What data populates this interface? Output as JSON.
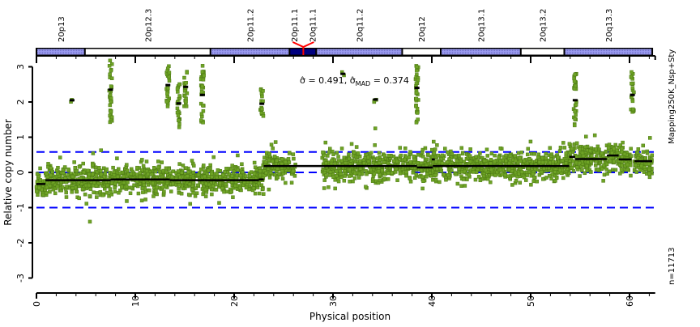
{
  "chart_data": {
    "type": "scatter",
    "xlabel": "Physical position",
    "ylabel": "Relative copy number",
    "xlim": [
      0,
      62.6
    ],
    "ylim": [
      -3,
      3.2
    ],
    "xticks": [
      0,
      10,
      20,
      30,
      40,
      50,
      60
    ],
    "yticks": [
      -3,
      -2,
      -1,
      0,
      1,
      2,
      3
    ],
    "annotation": {
      "sigma": "σ̂ = 0.491",
      "sep": ", ",
      "sigma_mad_prefix": "σ̂",
      "sigma_mad_sub": "MAD",
      "sigma_mad_value": " = 0.374"
    },
    "side_label": "Mapping250K_Nsp+Sty",
    "n_label": "n=11713",
    "n_points": 11713,
    "thresholds": [
      0.58,
      0,
      -1
    ],
    "colors": {
      "points": "#6ea325",
      "points_edge": "#4d7a14",
      "segments": "#000000",
      "thresholds": "#0000ff",
      "gpos": "#8c8ce6",
      "acen": "#000080",
      "centromere": "#ff0000"
    },
    "cytobands": [
      {
        "name": "20p13",
        "start": 0,
        "end": 4.9,
        "stain": "gpos"
      },
      {
        "name": "20p12.3",
        "start": 4.9,
        "end": 17.6,
        "stain": "gneg"
      },
      {
        "name": "20p11.2",
        "start": 17.6,
        "end": 25.6,
        "stain": "gpos"
      },
      {
        "name": "20p11.1",
        "start": 25.6,
        "end": 27.0,
        "stain": "acen"
      },
      {
        "name": "20q11.1",
        "start": 27.0,
        "end": 28.3,
        "stain": "acen"
      },
      {
        "name": "20q11.2",
        "start": 28.3,
        "end": 37.0,
        "stain": "gpos"
      },
      {
        "name": "20q12",
        "start": 37.0,
        "end": 40.9,
        "stain": "gneg"
      },
      {
        "name": "20q13.1",
        "start": 40.9,
        "end": 49.0,
        "stain": "gpos"
      },
      {
        "name": "20q13.2",
        "start": 49.0,
        "end": 53.4,
        "stain": "gneg"
      },
      {
        "name": "20q13.3",
        "start": 53.4,
        "end": 62.3,
        "stain": "gpos"
      }
    ],
    "centromere": 27.0,
    "segments": [
      {
        "start": 0,
        "end": 0.9,
        "mean": -0.33
      },
      {
        "start": 0.9,
        "end": 7.5,
        "mean": -0.22
      },
      {
        "start": 7.5,
        "end": 13.5,
        "mean": -0.2
      },
      {
        "start": 13.5,
        "end": 17.0,
        "mean": -0.22
      },
      {
        "start": 17.0,
        "end": 22.5,
        "mean": -0.22
      },
      {
        "start": 22.5,
        "end": 23.0,
        "mean": -0.2
      },
      {
        "start": 23.0,
        "end": 38.5,
        "mean": 0.18
      },
      {
        "start": 38.5,
        "end": 40.1,
        "mean": 0.14
      },
      {
        "start": 40.0,
        "end": 40.3,
        "mean": 0.37
      },
      {
        "start": 40.1,
        "end": 53.9,
        "mean": 0.18
      },
      {
        "start": 53.9,
        "end": 54.5,
        "mean": 0.44
      },
      {
        "start": 54.5,
        "end": 57.7,
        "mean": 0.38
      },
      {
        "start": 57.7,
        "end": 58.9,
        "mean": 0.48
      },
      {
        "start": 58.9,
        "end": 60.2,
        "mean": 0.37
      },
      {
        "start": 60.5,
        "end": 62.3,
        "mean": 0.32
      }
    ],
    "outlier_clusters": [
      {
        "x": 3.6,
        "mean": 2.05,
        "low": 2.0,
        "high": 2.1
      },
      {
        "x": 7.5,
        "mean": 2.35,
        "low": 1.3,
        "high": 3.2
      },
      {
        "x": 13.3,
        "mean": 2.48,
        "low": 1.8,
        "high": 3.2
      },
      {
        "x": 14.4,
        "mean": 1.96,
        "low": 1.2,
        "high": 2.6
      },
      {
        "x": 15.1,
        "mean": 2.43,
        "low": 1.8,
        "high": 2.9
      },
      {
        "x": 16.8,
        "mean": 2.2,
        "low": 1.4,
        "high": 3.1
      },
      {
        "x": 22.8,
        "mean": 1.95,
        "low": 1.5,
        "high": 2.4
      },
      {
        "x": 31.0,
        "mean": 2.8,
        "low": 2.75,
        "high": 2.85
      },
      {
        "x": 34.3,
        "mean": 2.07,
        "low": 2.0,
        "high": 2.15
      },
      {
        "x": 38.5,
        "mean": 2.4,
        "low": 1.4,
        "high": 3.1
      },
      {
        "x": 54.5,
        "mean": 2.05,
        "low": 1.3,
        "high": 3.0
      },
      {
        "x": 60.3,
        "mean": 2.2,
        "low": 1.7,
        "high": 2.9
      }
    ],
    "no_data_gap": [
      26.2,
      28.9
    ]
  }
}
